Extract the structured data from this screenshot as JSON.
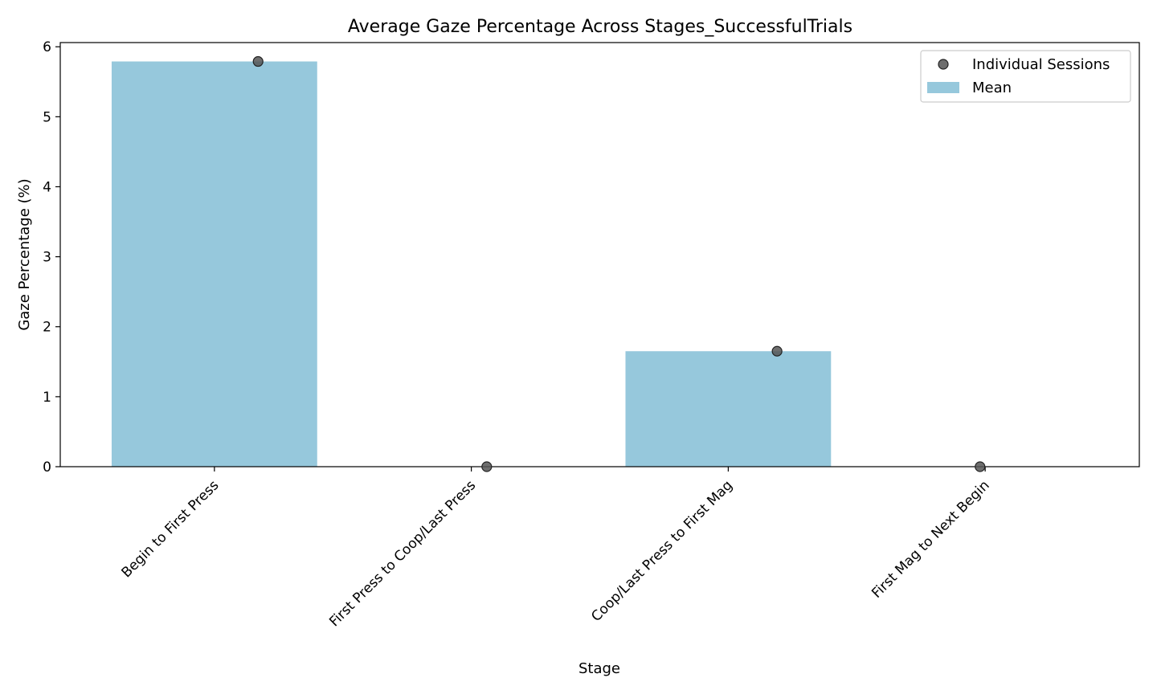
{
  "chart_data": {
    "type": "bar",
    "title": "Average Gaze Percentage Across Stages_SuccessfulTrials",
    "xlabel": "Stage",
    "ylabel": "Gaze Percentage (%)",
    "categories": [
      "Begin to First Press",
      "First Press to Coop/Last Press",
      "Coop/Last Press to First Mag",
      "First Mag to Next Begin"
    ],
    "series": [
      {
        "name": "Mean",
        "kind": "bar",
        "values": [
          5.79,
          0,
          1.65,
          0
        ],
        "color": "#96c8dc"
      },
      {
        "name": "Individual Sessions",
        "kind": "scatter",
        "x_offset": [
          0.17,
          0.06,
          0.19,
          -0.02
        ],
        "values": [
          5.79,
          0,
          1.65,
          0
        ],
        "color": "#555555"
      }
    ],
    "ylim": [
      0,
      6.06
    ],
    "yticks": [
      0,
      1,
      2,
      3,
      4,
      5,
      6
    ],
    "xlim": [
      -0.6,
      3.6
    ],
    "grid": false,
    "legend_position": "top-right",
    "legend": [
      {
        "label": "Individual Sessions",
        "marker": "circle",
        "color": "#555555"
      },
      {
        "label": "Mean",
        "marker": "patch",
        "color": "#96c8dc"
      }
    ]
  }
}
